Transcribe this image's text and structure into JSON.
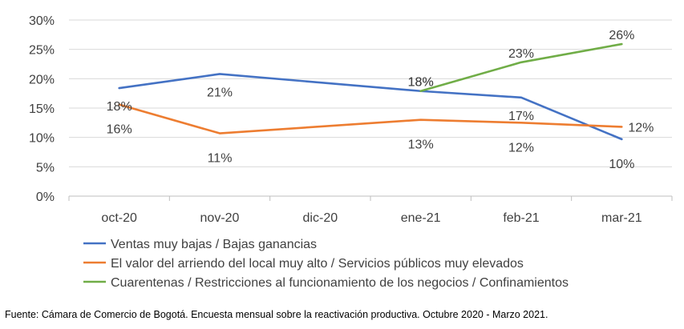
{
  "chart_data": {
    "type": "line",
    "categories": [
      "oct-20",
      "nov-20",
      "dic-20",
      "ene-21",
      "feb-21",
      "mar-21"
    ],
    "ylim": [
      0,
      30
    ],
    "yticks": [
      "0%",
      "5%",
      "10%",
      "15%",
      "20%",
      "25%",
      "30%"
    ],
    "ytick_values": [
      0,
      5,
      10,
      15,
      20,
      25,
      30
    ],
    "grid": "horizontal",
    "legend": "bottom",
    "series": [
      {
        "name": "Ventas muy bajas / Bajas ganancias",
        "color": "#4472C4",
        "values": [
          18.4,
          20.8,
          null,
          17.9,
          16.8,
          9.7
        ],
        "labels": [
          "18%",
          "21%",
          null,
          "18%",
          "17%",
          "10%"
        ]
      },
      {
        "name": "El valor del arriendo del local muy alto / Servicios públicos muy elevados",
        "color": "#ED7D31",
        "values": [
          15.6,
          10.7,
          null,
          13.0,
          12.5,
          11.8
        ],
        "labels": [
          "16%",
          "11%",
          null,
          "13%",
          "12%",
          "12%"
        ]
      },
      {
        "name": "Cuarentenas / Restricciones al funcionamiento de los negocios / Confinamientos",
        "color": "#70AD47",
        "values": [
          null,
          null,
          null,
          17.9,
          22.8,
          25.9
        ],
        "labels": [
          null,
          null,
          null,
          "18%",
          "23%",
          "26%"
        ]
      }
    ]
  },
  "source_note": "Fuente: Cámara de Comercio de Bogotá. Encuesta mensual sobre la reactivación productiva. Octubre 2020 - Marzo 2021."
}
